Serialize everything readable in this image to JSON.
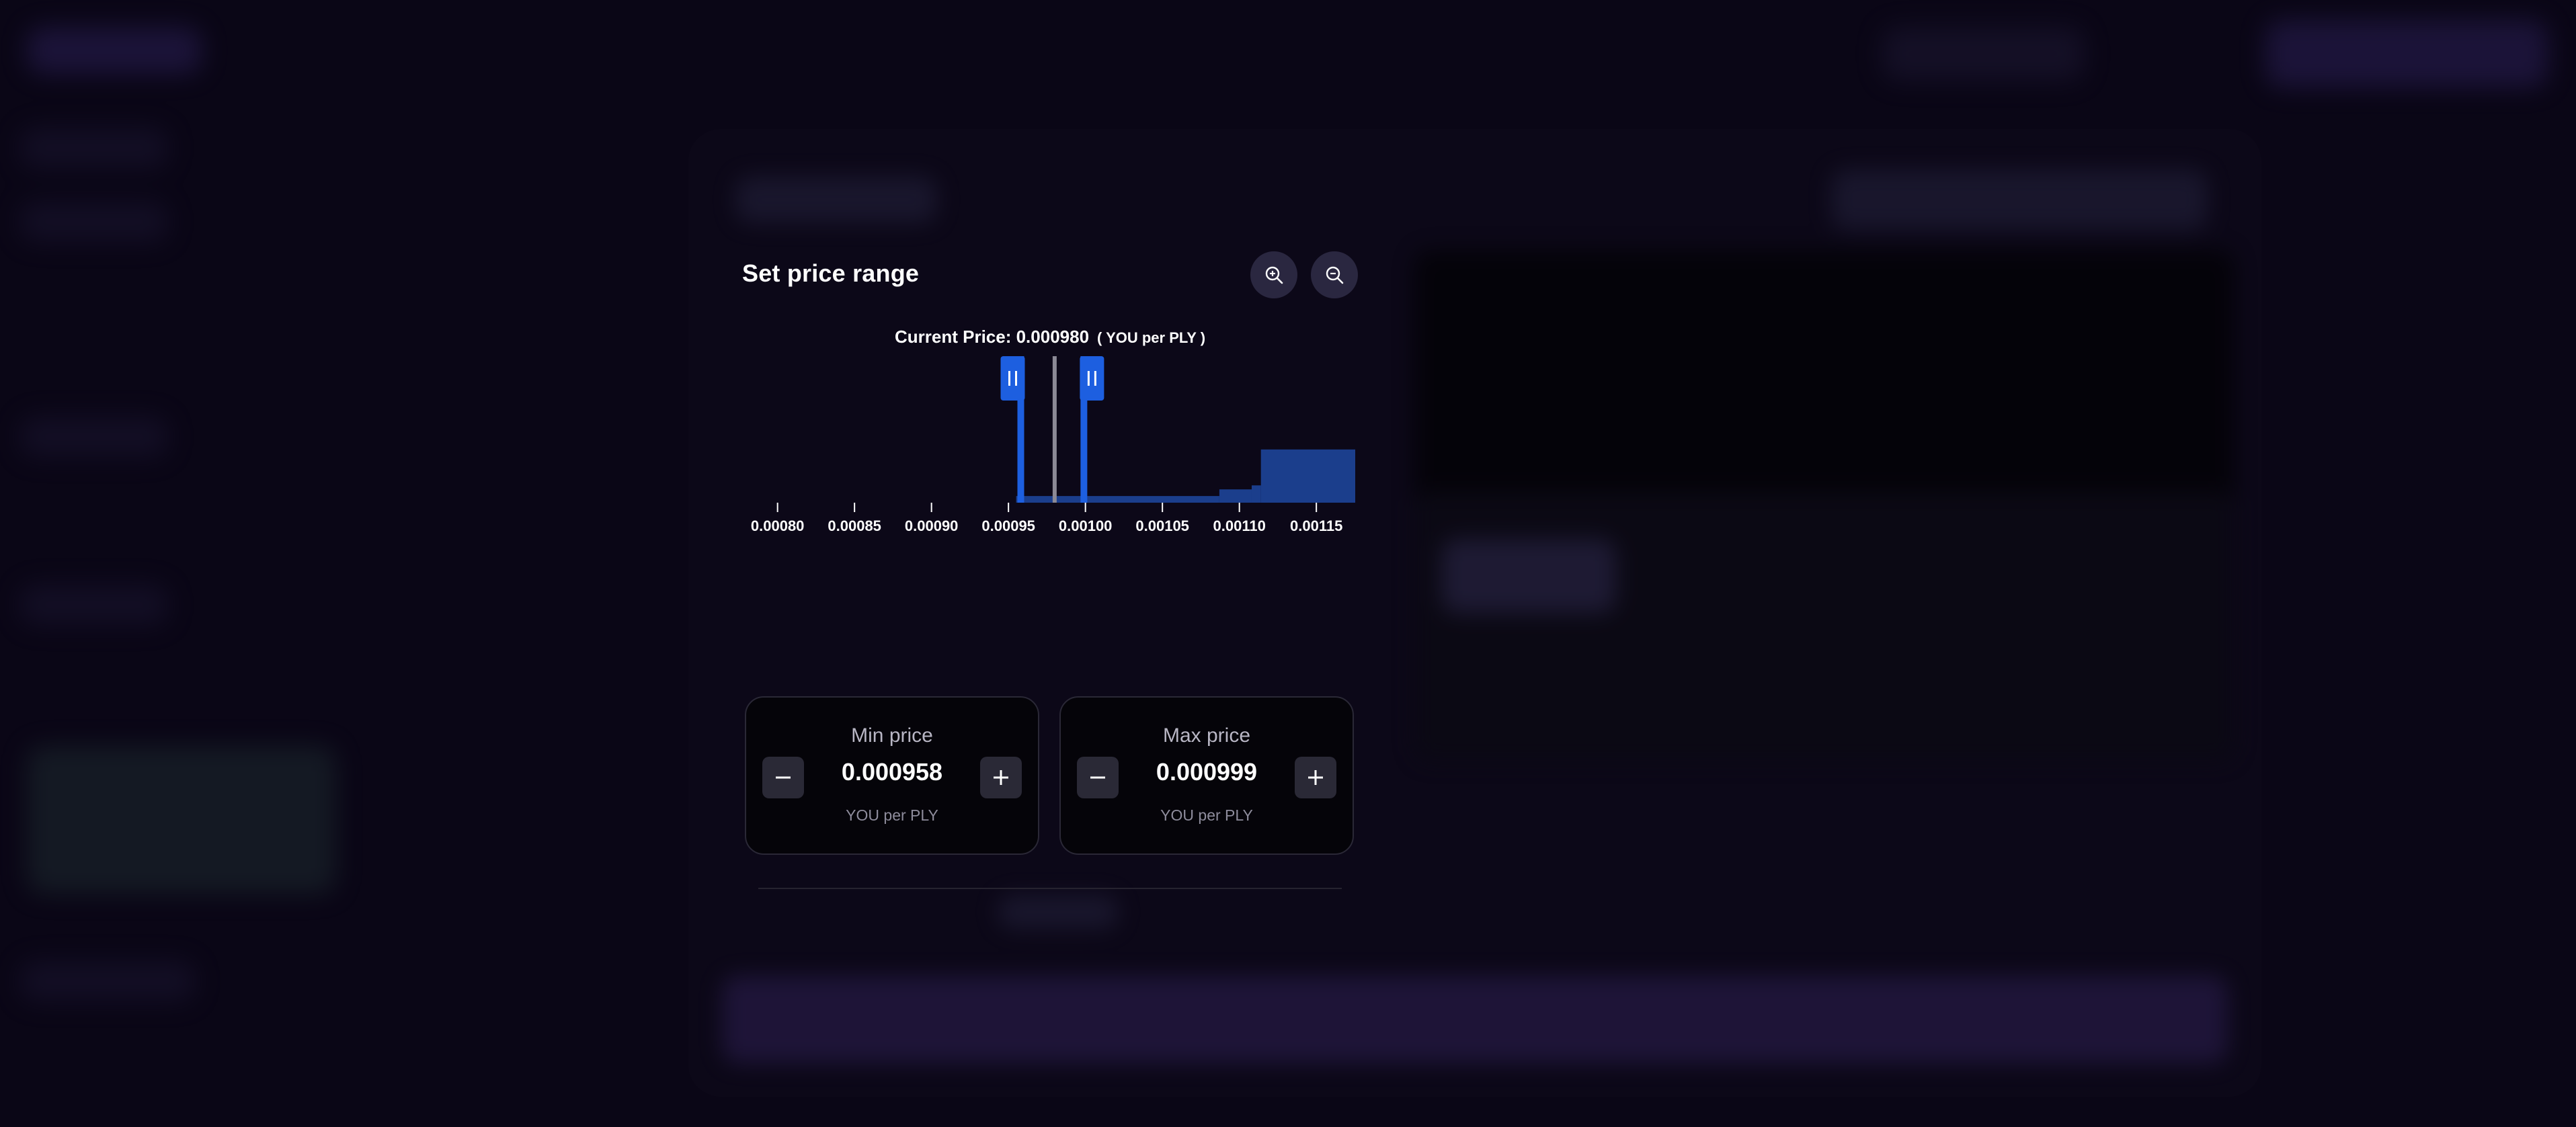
{
  "panel": {
    "title": "Set price range",
    "current_price_label": "Current Price: 0.000980",
    "current_price_unit": "( YOU per PLY )"
  },
  "icons": {
    "zoom_in": "zoom-in-icon",
    "zoom_out": "zoom-out-icon",
    "minus": "minus-icon",
    "plus": "plus-icon",
    "drag_handle": "drag-handle-icon"
  },
  "min_price": {
    "label": "Min price",
    "value": "0.000958",
    "unit": "YOU per PLY"
  },
  "max_price": {
    "label": "Max price",
    "value": "0.000999",
    "unit": "YOU per PLY"
  },
  "colors": {
    "accent_blue": "#1d5fe0",
    "liquidity_blue": "#1b3e8c",
    "current_price_line": "#8c8a96"
  },
  "chart_data": {
    "type": "area",
    "x_range": [
      0.000777,
      0.001177
    ],
    "x_ticks": [
      0.0008,
      0.00085,
      0.0009,
      0.00095,
      0.001,
      0.00105,
      0.0011,
      0.00115
    ],
    "x_tick_labels": [
      "0.00080",
      "0.00085",
      "0.00090",
      "0.00095",
      "0.00100",
      "0.00105",
      "0.00110",
      "0.00115"
    ],
    "current_price": 0.00098,
    "selected_range": [
      0.000958,
      0.000999
    ],
    "liquidity": [
      {
        "x0": 0.000955,
        "x1": 0.001087,
        "level": 0.05
      },
      {
        "x0": 0.001087,
        "x1": 0.001108,
        "level": 0.1
      },
      {
        "x0": 0.001108,
        "x1": 0.001114,
        "level": 0.13
      },
      {
        "x0": 0.001114,
        "x1": 0.001177,
        "level": 0.4
      }
    ],
    "ylim": [
      0,
      1
    ],
    "grid": false
  }
}
